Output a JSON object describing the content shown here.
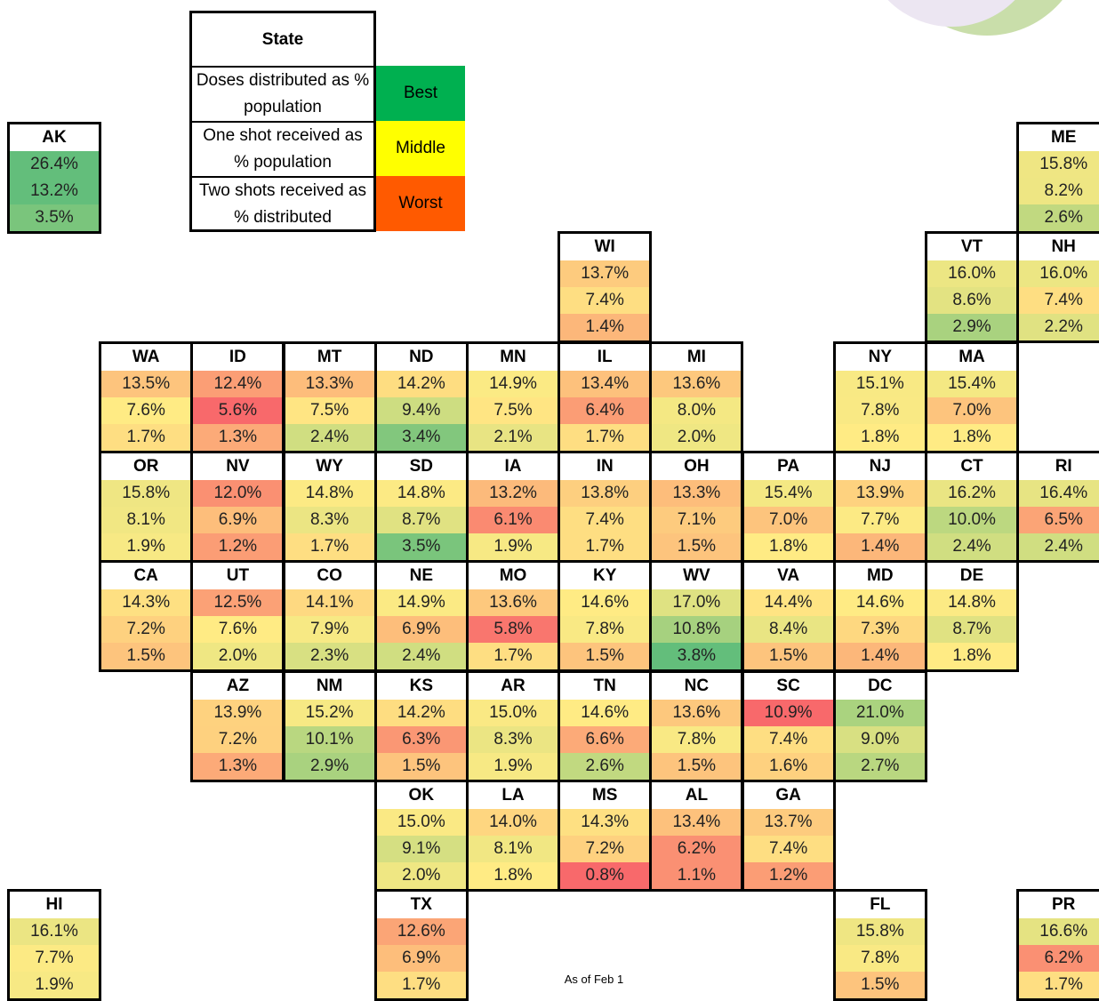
{
  "legend": {
    "header": "State",
    "rows": [
      {
        "text": "Doses distributed as % population",
        "level": "Best",
        "color": "#00b050"
      },
      {
        "text": "One shot received as % population",
        "level": "Middle",
        "color": "#ffff00"
      },
      {
        "text": "Two shots received as % distributed",
        "level": "Worst",
        "color": "#ff5a00"
      }
    ]
  },
  "scale_colors": {
    "worst": "#f8696b",
    "middle": "#ffeb84",
    "best": "#63be7b"
  },
  "states": [
    {
      "abbr": "AK",
      "values": [
        "26.4%",
        "13.2%",
        "3.5%"
      ]
    },
    {
      "abbr": "ME",
      "values": [
        "15.8%",
        "8.2%",
        "2.6%"
      ]
    },
    {
      "abbr": "WI",
      "values": [
        "13.7%",
        "7.4%",
        "1.4%"
      ]
    },
    {
      "abbr": "VT",
      "values": [
        "16.0%",
        "8.6%",
        "2.9%"
      ]
    },
    {
      "abbr": "NH",
      "values": [
        "16.0%",
        "7.4%",
        "2.2%"
      ]
    },
    {
      "abbr": "WA",
      "values": [
        "13.5%",
        "7.6%",
        "1.7%"
      ]
    },
    {
      "abbr": "ID",
      "values": [
        "12.4%",
        "5.6%",
        "1.3%"
      ]
    },
    {
      "abbr": "MT",
      "values": [
        "13.3%",
        "7.5%",
        "2.4%"
      ]
    },
    {
      "abbr": "ND",
      "values": [
        "14.2%",
        "9.4%",
        "3.4%"
      ]
    },
    {
      "abbr": "MN",
      "values": [
        "14.9%",
        "7.5%",
        "2.1%"
      ]
    },
    {
      "abbr": "IL",
      "values": [
        "13.4%",
        "6.4%",
        "1.7%"
      ]
    },
    {
      "abbr": "MI",
      "values": [
        "13.6%",
        "8.0%",
        "2.0%"
      ]
    },
    {
      "abbr": "NY",
      "values": [
        "15.1%",
        "7.8%",
        "1.8%"
      ]
    },
    {
      "abbr": "MA",
      "values": [
        "15.4%",
        "7.0%",
        "1.8%"
      ]
    },
    {
      "abbr": "OR",
      "values": [
        "15.8%",
        "8.1%",
        "1.9%"
      ]
    },
    {
      "abbr": "NV",
      "values": [
        "12.0%",
        "6.9%",
        "1.2%"
      ]
    },
    {
      "abbr": "WY",
      "values": [
        "14.8%",
        "8.3%",
        "1.7%"
      ]
    },
    {
      "abbr": "SD",
      "values": [
        "14.8%",
        "8.7%",
        "3.5%"
      ]
    },
    {
      "abbr": "IA",
      "values": [
        "13.2%",
        "6.1%",
        "1.9%"
      ]
    },
    {
      "abbr": "IN",
      "values": [
        "13.8%",
        "7.4%",
        "1.7%"
      ]
    },
    {
      "abbr": "OH",
      "values": [
        "13.3%",
        "7.1%",
        "1.5%"
      ]
    },
    {
      "abbr": "PA",
      "values": [
        "15.4%",
        "7.0%",
        "1.8%"
      ]
    },
    {
      "abbr": "NJ",
      "values": [
        "13.9%",
        "7.7%",
        "1.4%"
      ]
    },
    {
      "abbr": "CT",
      "values": [
        "16.2%",
        "10.0%",
        "2.4%"
      ]
    },
    {
      "abbr": "RI",
      "values": [
        "16.4%",
        "6.5%",
        "2.4%"
      ]
    },
    {
      "abbr": "CA",
      "values": [
        "14.3%",
        "7.2%",
        "1.5%"
      ]
    },
    {
      "abbr": "UT",
      "values": [
        "12.5%",
        "7.6%",
        "2.0%"
      ]
    },
    {
      "abbr": "CO",
      "values": [
        "14.1%",
        "7.9%",
        "2.3%"
      ]
    },
    {
      "abbr": "NE",
      "values": [
        "14.9%",
        "6.9%",
        "2.4%"
      ]
    },
    {
      "abbr": "MO",
      "values": [
        "13.6%",
        "5.8%",
        "1.7%"
      ]
    },
    {
      "abbr": "KY",
      "values": [
        "14.6%",
        "7.8%",
        "1.5%"
      ]
    },
    {
      "abbr": "WV",
      "values": [
        "17.0%",
        "10.8%",
        "3.8%"
      ]
    },
    {
      "abbr": "VA",
      "values": [
        "14.4%",
        "8.4%",
        "1.5%"
      ]
    },
    {
      "abbr": "MD",
      "values": [
        "14.6%",
        "7.3%",
        "1.4%"
      ]
    },
    {
      "abbr": "DE",
      "values": [
        "14.8%",
        "8.7%",
        "1.8%"
      ]
    },
    {
      "abbr": "AZ",
      "values": [
        "13.9%",
        "7.2%",
        "1.3%"
      ]
    },
    {
      "abbr": "NM",
      "values": [
        "15.2%",
        "10.1%",
        "2.9%"
      ]
    },
    {
      "abbr": "KS",
      "values": [
        "14.2%",
        "6.3%",
        "1.5%"
      ]
    },
    {
      "abbr": "AR",
      "values": [
        "15.0%",
        "8.3%",
        "1.9%"
      ]
    },
    {
      "abbr": "TN",
      "values": [
        "14.6%",
        "6.6%",
        "2.6%"
      ]
    },
    {
      "abbr": "NC",
      "values": [
        "13.6%",
        "7.8%",
        "1.5%"
      ]
    },
    {
      "abbr": "SC",
      "values": [
        "10.9%",
        "7.4%",
        "1.6%"
      ]
    },
    {
      "abbr": "DC",
      "values": [
        "21.0%",
        "9.0%",
        "2.7%"
      ]
    },
    {
      "abbr": "OK",
      "values": [
        "15.0%",
        "9.1%",
        "2.0%"
      ]
    },
    {
      "abbr": "LA",
      "values": [
        "14.0%",
        "8.1%",
        "1.8%"
      ]
    },
    {
      "abbr": "MS",
      "values": [
        "14.3%",
        "7.2%",
        "0.8%"
      ]
    },
    {
      "abbr": "AL",
      "values": [
        "13.4%",
        "6.2%",
        "1.1%"
      ]
    },
    {
      "abbr": "GA",
      "values": [
        "13.7%",
        "7.4%",
        "1.2%"
      ]
    },
    {
      "abbr": "HI",
      "values": [
        "16.1%",
        "7.7%",
        "1.9%"
      ]
    },
    {
      "abbr": "TX",
      "values": [
        "12.6%",
        "6.9%",
        "1.7%"
      ]
    },
    {
      "abbr": "FL",
      "values": [
        "15.8%",
        "7.8%",
        "1.5%"
      ]
    },
    {
      "abbr": "PR",
      "values": [
        "16.6%",
        "6.2%",
        "1.7%"
      ]
    }
  ],
  "note": "As of Feb 1"
}
